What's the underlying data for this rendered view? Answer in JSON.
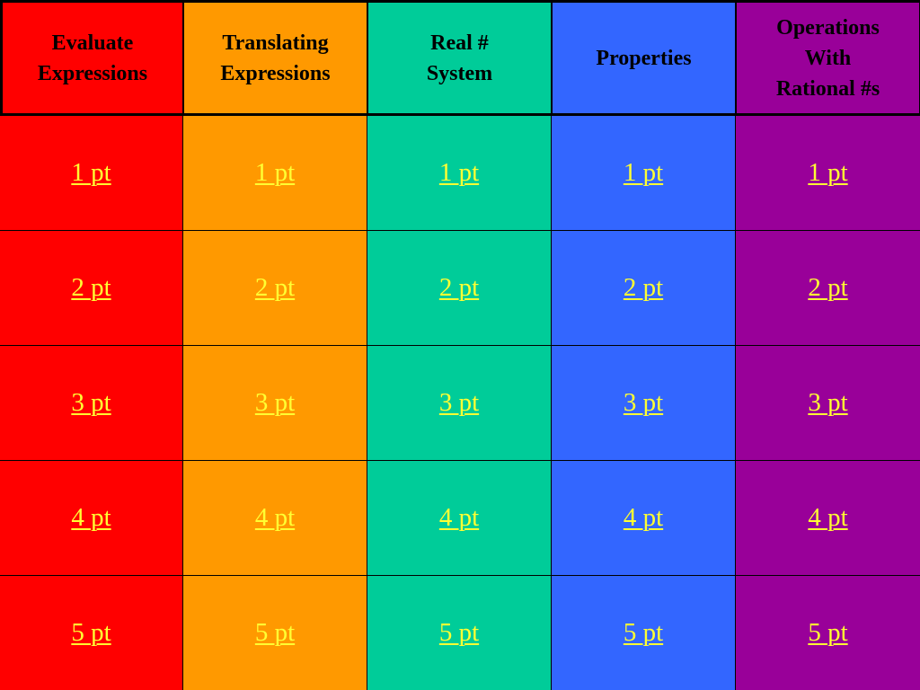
{
  "colors": {
    "column_0": "#ff0000",
    "column_1": "#ff9900",
    "column_2": "#00cc99",
    "column_3": "#3366ff",
    "column_4": "#990099",
    "link_text": "#ffff33"
  },
  "categories": [
    {
      "title": "Evaluate\nExpressions"
    },
    {
      "title": "Translating\nExpressions"
    },
    {
      "title": "Real #\nSystem"
    },
    {
      "title": "Properties"
    },
    {
      "title": "Operations\nWith\nRational #s"
    }
  ],
  "rows": [
    [
      "1 pt",
      "1 pt",
      "1 pt",
      "1 pt",
      "1 pt"
    ],
    [
      "2 pt",
      "2 pt",
      "2 pt",
      "2 pt",
      "2 pt"
    ],
    [
      "3 pt",
      "3 pt",
      "3 pt",
      "3 pt",
      "3 pt"
    ],
    [
      "4 pt",
      "4 pt",
      "4 pt",
      "4 pt",
      "4 pt"
    ],
    [
      "5 pt",
      "5 pt",
      "5 pt",
      "5 pt",
      "5 pt"
    ]
  ]
}
